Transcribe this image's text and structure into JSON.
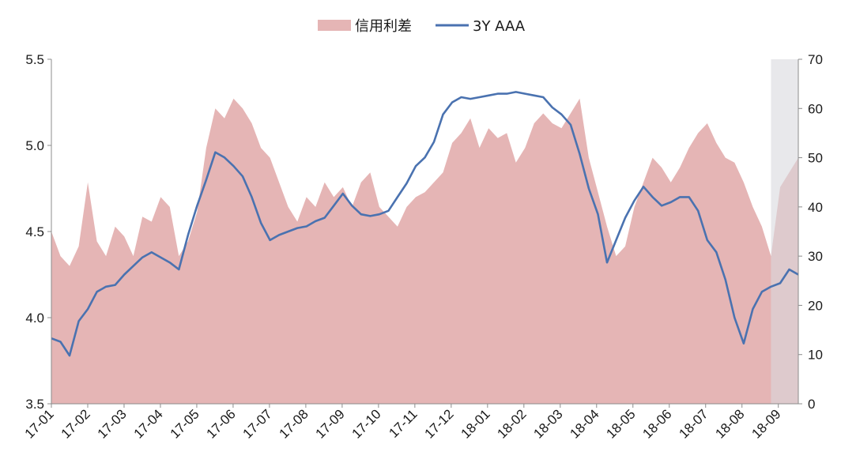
{
  "chart_data": {
    "type": "area",
    "title": "",
    "xlabel": "",
    "ylabel": "",
    "y2label": "",
    "legend": {
      "placement": "top-center"
    },
    "grid": false,
    "ylim": [
      3.5,
      5.5
    ],
    "y2lim": [
      0,
      70
    ],
    "yticks": [
      "3.5",
      "4.0",
      "4.5",
      "5.0",
      "5.5"
    ],
    "y2ticks": [
      "0",
      "10",
      "20",
      "30",
      "40",
      "50",
      "60",
      "70"
    ],
    "x_tick_labels": [
      "17-01",
      "17-02",
      "17-03",
      "17-04",
      "17-05",
      "17-06",
      "17-07",
      "17-08",
      "17-09",
      "17-10",
      "17-11",
      "17-12",
      "18-01",
      "18-02",
      "18-03",
      "18-04",
      "18-05",
      "18-06",
      "18-07",
      "18-08",
      "18-09"
    ],
    "x": [
      "17-01",
      "17-01",
      "17-01",
      "17-01",
      "17-02",
      "17-02",
      "17-02",
      "17-02",
      "17-03",
      "17-03",
      "17-03",
      "17-03",
      "17-04",
      "17-04",
      "17-04",
      "17-04",
      "17-05",
      "17-05",
      "17-05",
      "17-05",
      "17-06",
      "17-06",
      "17-06",
      "17-06",
      "17-07",
      "17-07",
      "17-07",
      "17-07",
      "17-08",
      "17-08",
      "17-08",
      "17-08",
      "17-09",
      "17-09",
      "17-09",
      "17-09",
      "17-10",
      "17-10",
      "17-10",
      "17-10",
      "17-11",
      "17-11",
      "17-11",
      "17-11",
      "17-12",
      "17-12",
      "17-12",
      "17-12",
      "18-01",
      "18-01",
      "18-01",
      "18-01",
      "18-02",
      "18-02",
      "18-02",
      "18-02",
      "18-03",
      "18-03",
      "18-03",
      "18-03",
      "18-04",
      "18-04",
      "18-04",
      "18-04",
      "18-05",
      "18-05",
      "18-05",
      "18-05",
      "18-06",
      "18-06",
      "18-06",
      "18-06",
      "18-07",
      "18-07",
      "18-07",
      "18-07",
      "18-08",
      "18-08",
      "18-08",
      "18-08",
      "18-09",
      "18-09",
      "18-09"
    ],
    "shaded_region": {
      "from_index": 79,
      "to_index": 82,
      "color": "#D9D9DE"
    },
    "series": [
      {
        "name": "信用利差",
        "type": "area",
        "axis": "right",
        "color": "#E5B5B5",
        "values": [
          35,
          30,
          28,
          32,
          45,
          33,
          30,
          36,
          34,
          30,
          38,
          37,
          42,
          40,
          30,
          33,
          39,
          52,
          60,
          58,
          62,
          60,
          57,
          52,
          50,
          45,
          40,
          37,
          42,
          40,
          45,
          42,
          44,
          40,
          45,
          47,
          40,
          38,
          36,
          40,
          42,
          43,
          45,
          47,
          53,
          55,
          58,
          52,
          56,
          54,
          55,
          49,
          52,
          57,
          59,
          57,
          56,
          59,
          62,
          50,
          43,
          36,
          30,
          32,
          40,
          45,
          50,
          48,
          45,
          48,
          52,
          55,
          57,
          53,
          50,
          49,
          45,
          40,
          36,
          30,
          44,
          47,
          50
        ]
      },
      {
        "name": "3Y AAA",
        "type": "line",
        "axis": "left",
        "color": "#4A72B0",
        "values": [
          3.88,
          3.86,
          3.78,
          3.98,
          4.05,
          4.15,
          4.18,
          4.19,
          4.25,
          4.3,
          4.35,
          4.38,
          4.35,
          4.32,
          4.28,
          4.48,
          4.65,
          4.8,
          4.96,
          4.93,
          4.88,
          4.82,
          4.7,
          4.55,
          4.45,
          4.48,
          4.5,
          4.52,
          4.53,
          4.56,
          4.58,
          4.65,
          4.72,
          4.65,
          4.6,
          4.59,
          4.6,
          4.62,
          4.7,
          4.78,
          4.88,
          4.93,
          5.02,
          5.18,
          5.25,
          5.28,
          5.27,
          5.28,
          5.29,
          5.3,
          5.3,
          5.31,
          5.3,
          5.29,
          5.28,
          5.22,
          5.18,
          5.12,
          4.95,
          4.75,
          4.6,
          4.32,
          4.45,
          4.58,
          4.68,
          4.76,
          4.7,
          4.65,
          4.67,
          4.7,
          4.7,
          4.62,
          4.45,
          4.38,
          4.22,
          4.0,
          3.85,
          4.05,
          4.15,
          4.18,
          4.2,
          4.28,
          4.25
        ]
      }
    ]
  }
}
